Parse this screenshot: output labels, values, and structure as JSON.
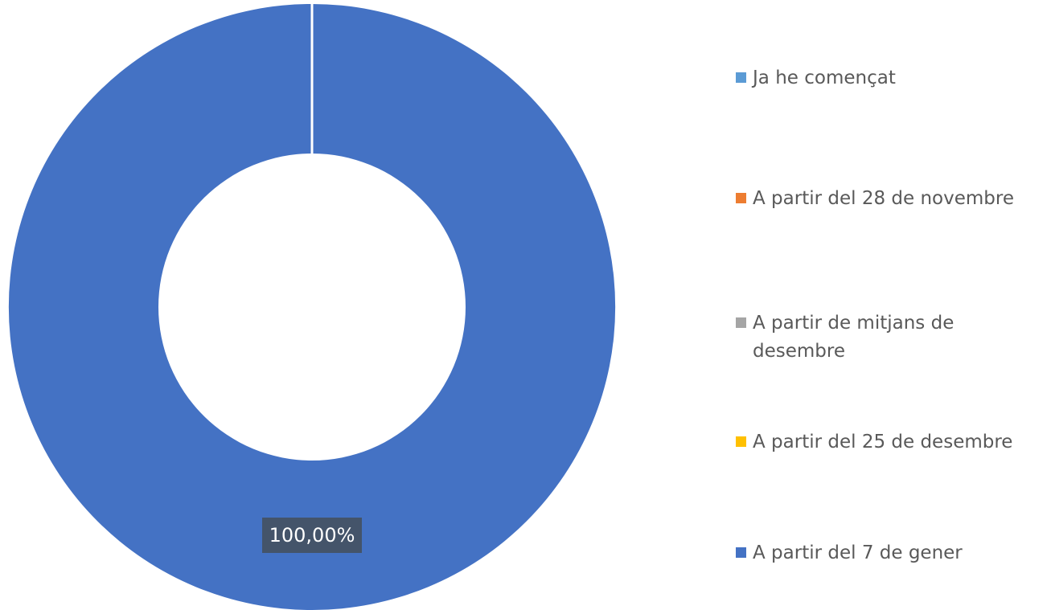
{
  "chart_data": {
    "type": "pie",
    "subtype": "doughnut",
    "title": "",
    "categories": [
      "Ja he començat",
      "A partir del 28 de novembre",
      "A partir de mitjans de desembre",
      "A partir del 25 de desembre",
      "A partir del 7 de gener"
    ],
    "values": [
      0,
      0,
      0,
      0,
      100
    ],
    "data_labels": [
      "",
      "",
      "",
      "",
      "100,00%"
    ],
    "colors": [
      "#5b9bd5",
      "#ed7d31",
      "#a5a5a5",
      "#ffc000",
      "#4472c4"
    ],
    "legend": {
      "position": "right",
      "entries": [
        "Ja he començat",
        "A partir del 28 de novembre",
        "A partir de mitjans de desembre",
        "A partir del 25 de desembre",
        "A partir del 7 de gener"
      ]
    }
  }
}
